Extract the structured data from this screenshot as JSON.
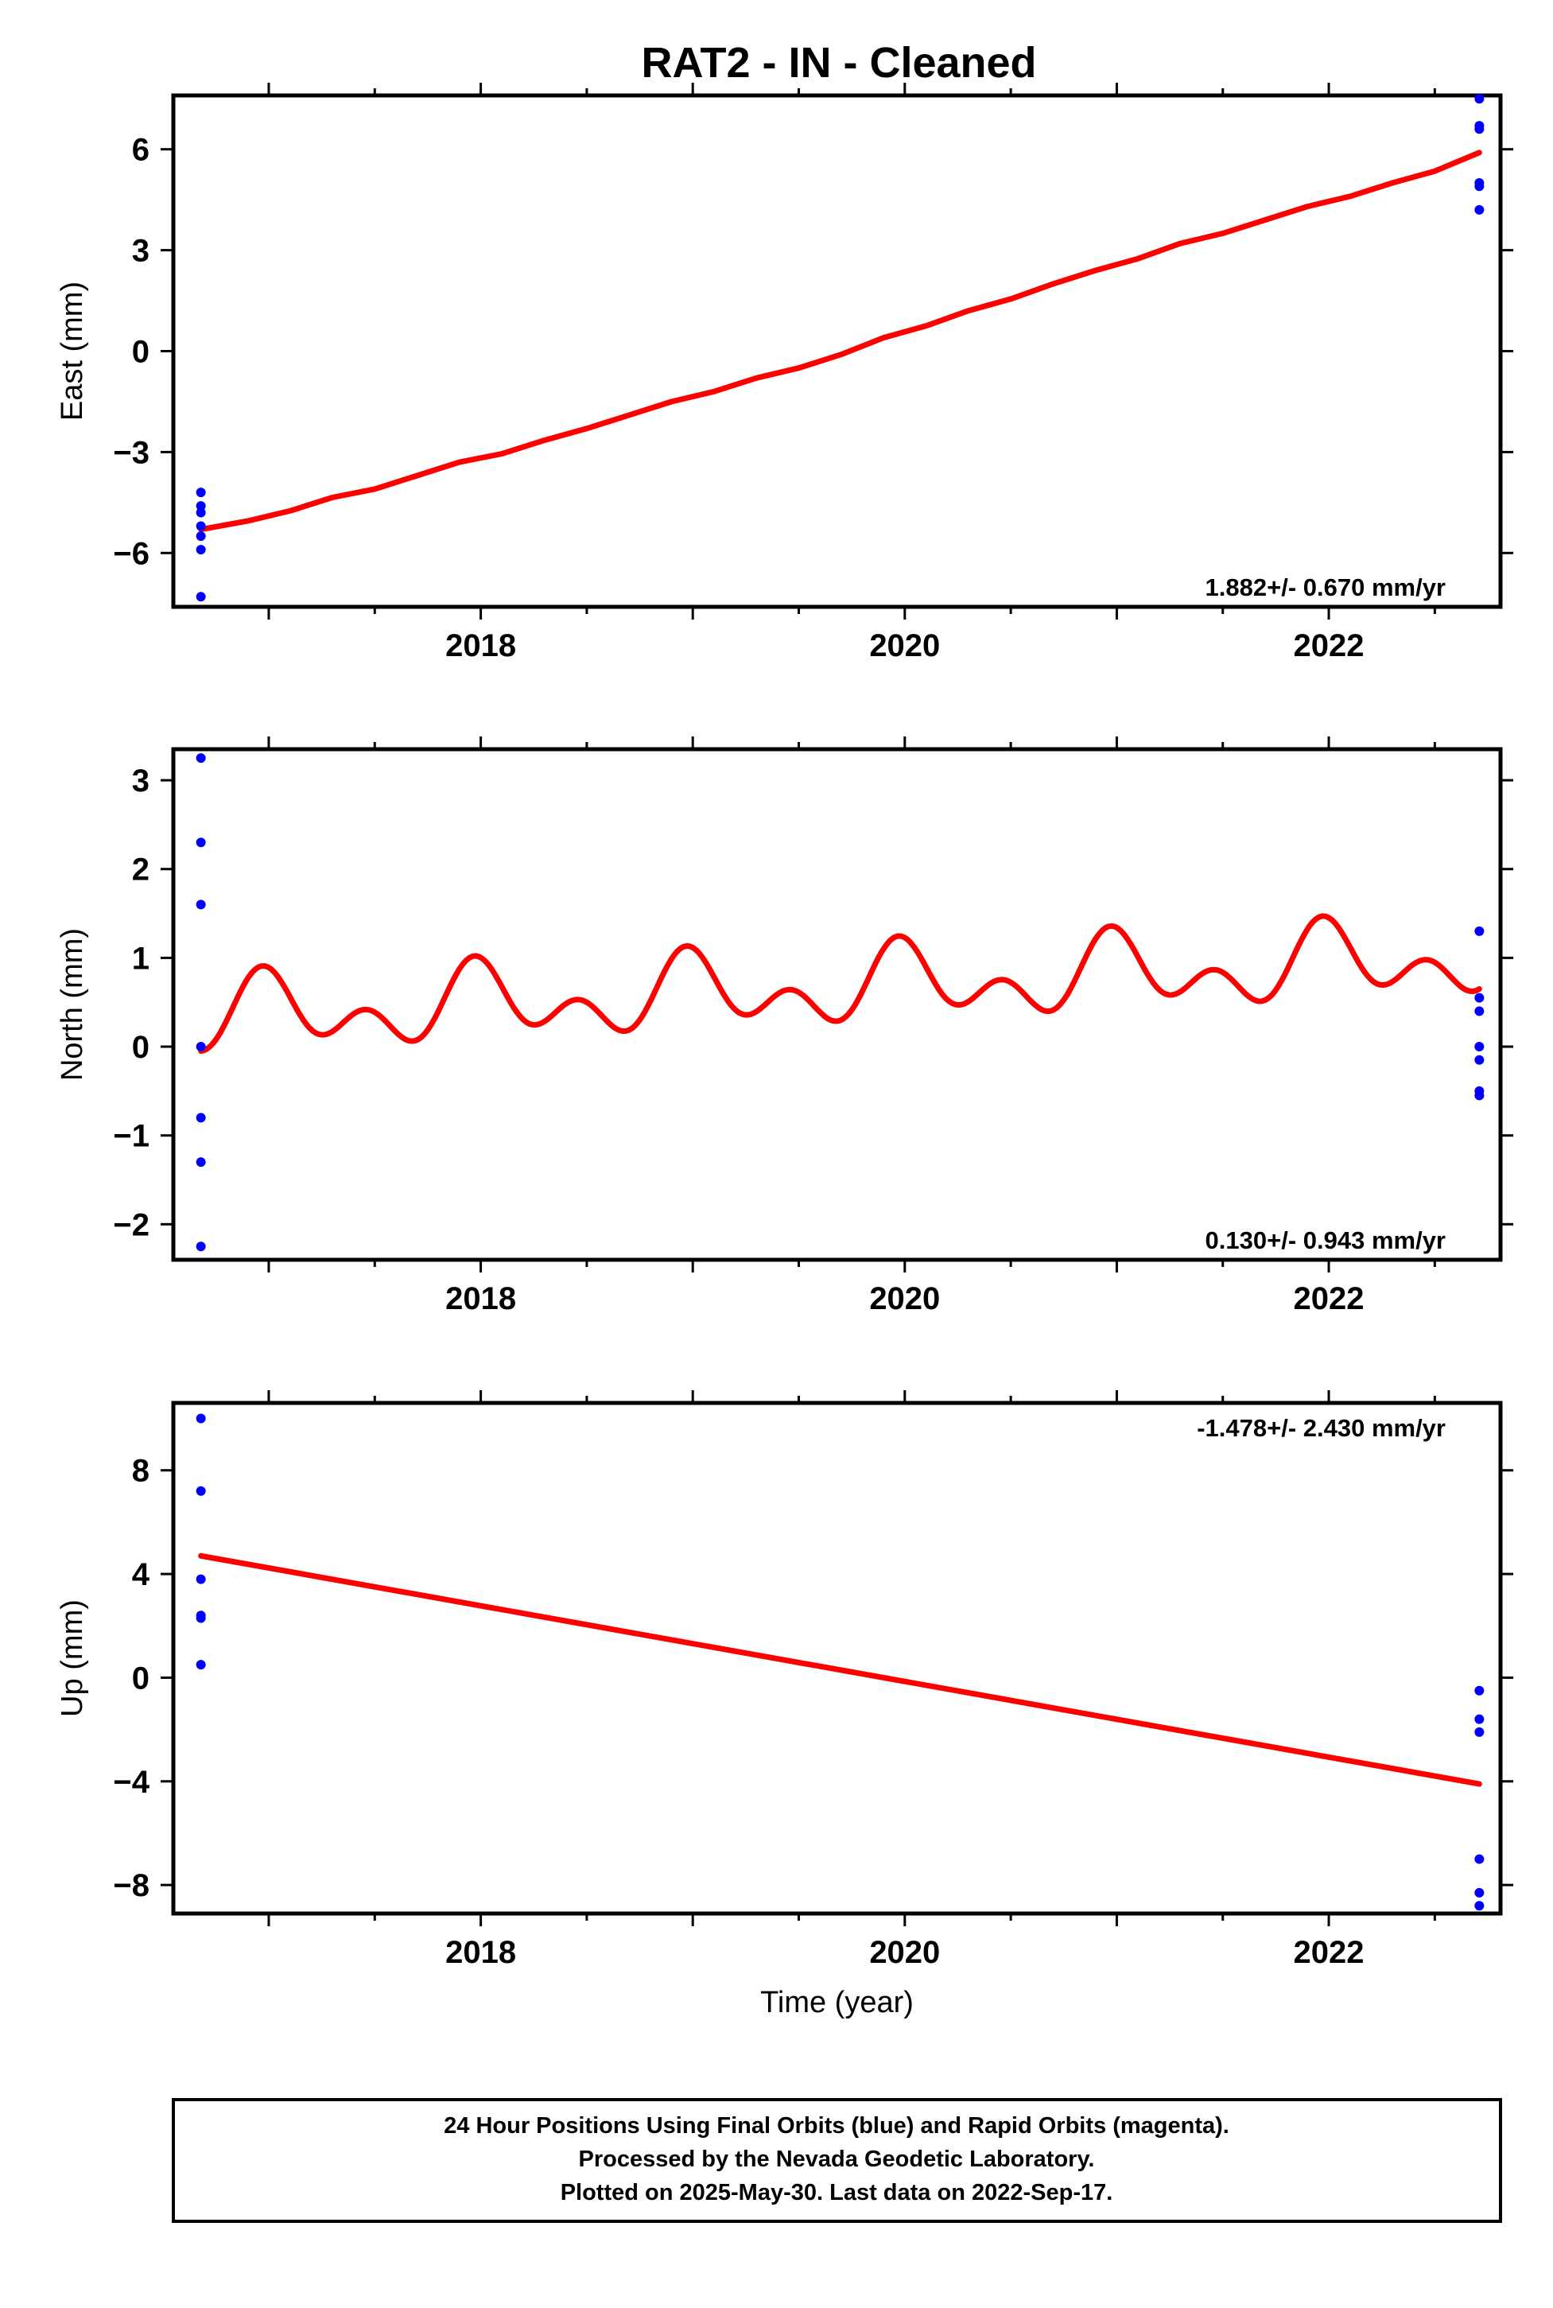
{
  "title": "RAT2  - IN - Cleaned",
  "footer": {
    "line1": "24 Hour Positions Using Final Orbits (blue) and Rapid Orbits (magenta).",
    "line2": "Processed by the Nevada Geodetic Laboratory.",
    "line3": "Plotted on 2025-May-30. Last data on 2022-Sep-17."
  },
  "colors": {
    "final_orbit_points": "#0000ff",
    "model_fit": "#ff0000",
    "frame": "#000000"
  },
  "chart_data": [
    {
      "type": "scatter",
      "ylabel": "East (mm)",
      "xlim": [
        2016.55,
        2022.81
      ],
      "ylim": [
        -7.6,
        7.6
      ],
      "x_ticks": [
        2018,
        2020,
        2022
      ],
      "y_ticks": [
        -6,
        -3,
        0,
        3,
        6
      ],
      "rate_label": "1.882+/- 0.670 mm/yr",
      "rate_position": "bottom-right",
      "points": [
        [
          2016.68,
          -4.2
        ],
        [
          2016.68,
          -4.6
        ],
        [
          2016.68,
          -4.8
        ],
        [
          2016.68,
          -5.2
        ],
        [
          2016.68,
          -5.5
        ],
        [
          2016.68,
          -5.9
        ],
        [
          2016.68,
          -7.3
        ],
        [
          2022.71,
          7.5
        ],
        [
          2022.71,
          6.7
        ],
        [
          2022.71,
          6.6
        ],
        [
          2022.71,
          5.0
        ],
        [
          2022.71,
          4.9
        ],
        [
          2022.71,
          4.2
        ]
      ],
      "fit": {
        "x": [
          2016.68,
          2016.9,
          2017.1,
          2017.3,
          2017.5,
          2017.7,
          2017.9,
          2018.1,
          2018.3,
          2018.5,
          2018.7,
          2018.9,
          2019.1,
          2019.3,
          2019.5,
          2019.7,
          2019.9,
          2020.1,
          2020.3,
          2020.5,
          2020.7,
          2020.9,
          2021.1,
          2021.3,
          2021.5,
          2021.7,
          2021.9,
          2022.1,
          2022.3,
          2022.5,
          2022.71
        ],
        "y": [
          -5.3,
          -5.05,
          -4.75,
          -4.35,
          -4.1,
          -3.7,
          -3.3,
          -3.05,
          -2.65,
          -2.3,
          -1.9,
          -1.5,
          -1.2,
          -0.8,
          -0.5,
          -0.1,
          0.4,
          0.75,
          1.2,
          1.55,
          2.0,
          2.4,
          2.75,
          3.2,
          3.5,
          3.9,
          4.3,
          4.6,
          5.0,
          5.35,
          5.9
        ]
      }
    },
    {
      "type": "scatter",
      "ylabel": "North (mm)",
      "xlim": [
        2016.55,
        2022.81
      ],
      "ylim": [
        -2.4,
        3.35
      ],
      "x_ticks": [
        2018,
        2020,
        2022
      ],
      "y_ticks": [
        -2,
        -1,
        0,
        1,
        2,
        3
      ],
      "rate_label": "0.130+/- 0.943 mm/yr",
      "rate_position": "bottom-right",
      "points": [
        [
          2016.68,
          3.25
        ],
        [
          2016.68,
          2.3
        ],
        [
          2016.68,
          1.6
        ],
        [
          2016.68,
          0.0
        ],
        [
          2016.68,
          -0.8
        ],
        [
          2016.68,
          -1.3
        ],
        [
          2016.68,
          -2.25
        ],
        [
          2022.71,
          1.3
        ],
        [
          2022.71,
          0.55
        ],
        [
          2022.71,
          0.4
        ],
        [
          2022.71,
          0.0
        ],
        [
          2022.71,
          -0.15
        ],
        [
          2022.71,
          -0.55
        ],
        [
          2022.71,
          -0.5
        ]
      ],
      "fit": {
        "model": "linear plus annual and semi-annual sinusoids",
        "y_start": -0.05,
        "y_end": 0.65
      }
    },
    {
      "type": "scatter",
      "ylabel": "Up (mm)",
      "xlabel": "Time (year)",
      "xlim": [
        2016.55,
        2022.81
      ],
      "ylim": [
        -9.1,
        10.6
      ],
      "x_ticks": [
        2018,
        2020,
        2022
      ],
      "y_ticks": [
        -8,
        -4,
        0,
        4,
        8
      ],
      "rate_label": "-1.478+/- 2.430 mm/yr",
      "rate_position": "top-right",
      "points": [
        [
          2016.68,
          10.0
        ],
        [
          2016.68,
          7.2
        ],
        [
          2016.68,
          3.8
        ],
        [
          2016.68,
          2.4
        ],
        [
          2016.68,
          2.3
        ],
        [
          2016.68,
          0.5
        ],
        [
          2022.71,
          -0.5
        ],
        [
          2022.71,
          -1.6
        ],
        [
          2022.71,
          -2.1
        ],
        [
          2022.71,
          -7.0
        ],
        [
          2022.71,
          -8.3
        ],
        [
          2022.71,
          -8.8
        ]
      ],
      "fit": {
        "x": [
          2016.68,
          2022.71
        ],
        "y": [
          4.7,
          -4.1
        ]
      }
    }
  ]
}
